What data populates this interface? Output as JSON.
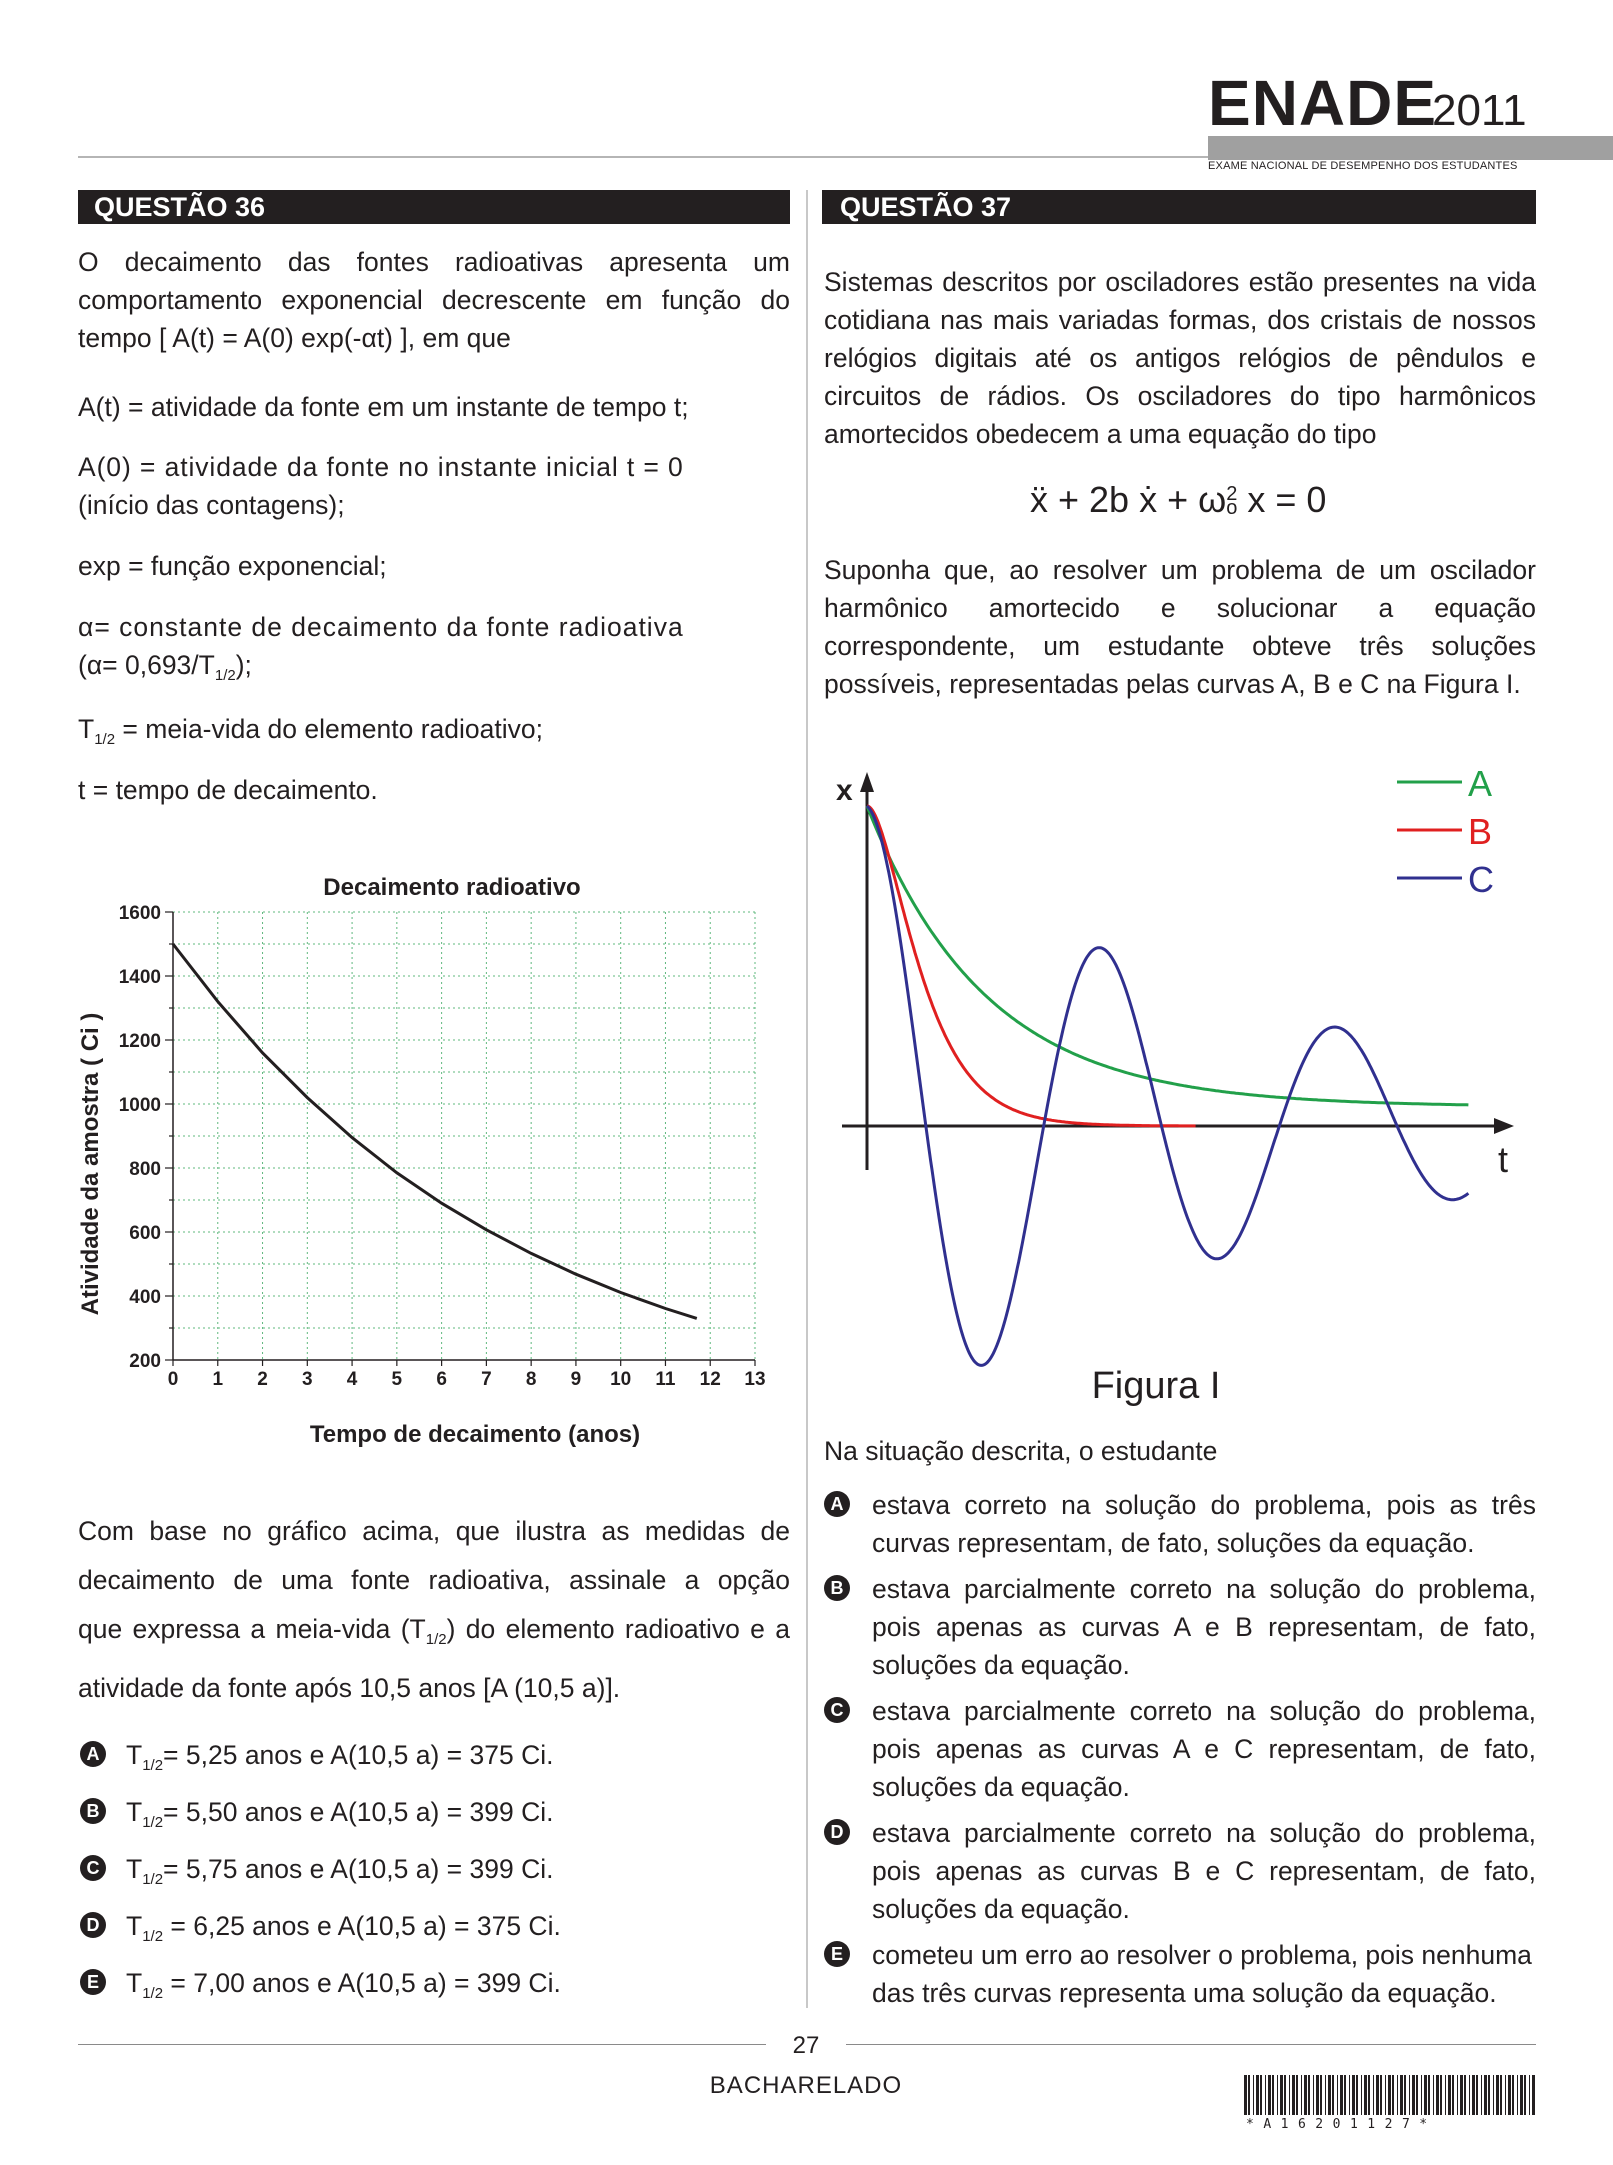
{
  "header": {
    "logo_title": "ENADE",
    "logo_year": "2011",
    "logo_subtitle": "EXAME NACIONAL DE DESEMPENHO DOS ESTUDANTES"
  },
  "q36": {
    "title": "QUESTÃO 36",
    "intro": "O decaimento das fontes radioativas apresenta um comportamento exponencial decrescente em função do tempo [ A(t) = A(0) exp(-αt) ], em que",
    "def_at": "A(t) = atividade da fonte em um instante de tempo t;",
    "def_a0_line1": "A(0) = atividade da fonte no instante inicial t = 0",
    "def_a0_line2": "(início das contagens);",
    "def_exp": "exp = função exponencial;",
    "def_alpha_line1": "α= constante de decaimento da fonte radioativa",
    "def_alpha_line2_pre": "(α= 0,693/T",
    "def_alpha_line2_sub": "1/2",
    "def_alpha_line2_post": ");",
    "def_t12_pre": "T",
    "def_t12_sub": "1/2",
    "def_t12_post": " = meia-vida do elemento radioativo;",
    "def_t": "t = tempo de decaimento.",
    "question_line1": "Com base no gráfico acima, que ilustra as medidas de",
    "question_line2": "decaimento de uma fonte radioativa, assinale a opção",
    "question_line3_pre": "que expressa a meia-vida (T",
    "question_line3_sub": "1/2",
    "question_line3_post": ") do elemento radioativo e a",
    "question_line4": "atividade da fonte após 10,5 anos [A (10,5 a)].",
    "options": [
      {
        "letter": "A",
        "pre": "T",
        "sub": "1/2",
        "post": "= 5,25 anos e A(10,5 a) = 375 Ci."
      },
      {
        "letter": "B",
        "pre": "T",
        "sub": "1/2",
        "post": "= 5,50 anos e A(10,5 a) = 399 Ci."
      },
      {
        "letter": "C",
        "pre": "T",
        "sub": "1/2",
        "post": "= 5,75 anos e A(10,5 a) = 399 Ci."
      },
      {
        "letter": "D",
        "pre": "T",
        "sub": "1/2",
        "post": " = 6,25 anos e A(10,5 a) = 375 Ci."
      },
      {
        "letter": "E",
        "pre": "T",
        "sub": "1/2",
        "post": " = 7,00 anos e A(10,5 a) = 399 Ci."
      }
    ]
  },
  "q37": {
    "title": "QUESTÃO 37",
    "intro": "Sistemas descritos por osciladores estão presentes na vida cotidiana nas mais variadas formas, dos cristais de nossos relógios digitais até os antigos relógios de pêndulos e circuitos de rádios. Os osciladores do tipo harmônicos amortecidos obedecem a uma equação do tipo",
    "eq_a": "ẍ + 2b ẋ + ω",
    "eq_sup": "2",
    "eq_sub": "o",
    "eq_b": " x = 0",
    "para2": "Suponha que, ao resolver um problema de um oscilador harmônico amortecido e solucionar a equação correspondente, um estudante obteve três soluções possíveis, representadas pelas curvas A, B e C na Figura I.",
    "stem": "Na situação descrita, o estudante",
    "options": [
      {
        "letter": "A",
        "text": "estava correto na solução do problema, pois as três curvas representam, de fato, soluções da equação."
      },
      {
        "letter": "B",
        "text": "estava parcialmente correto na solução do problema, pois apenas as curvas A e B representam, de fato, soluções da equação."
      },
      {
        "letter": "C",
        "text": "estava parcialmente correto na solução do problema, pois apenas as curvas A e C representam, de fato, soluções da equação."
      },
      {
        "letter": "D",
        "text": "estava parcialmente correto na solução do problema, pois apenas as curvas B e C representam, de fato, soluções da equação."
      },
      {
        "letter": "E",
        "text": "cometeu um erro ao resolver o problema, pois nenhuma das três curvas representa uma solução da equação."
      }
    ]
  },
  "chart_data": [
    {
      "type": "line",
      "title": "Decaimento radioativo",
      "xlabel": "Tempo de decaimento (anos)",
      "ylabel": "Atividade da amostra ( Ci )",
      "xlim": [
        0,
        13
      ],
      "ylim": [
        200,
        1600
      ],
      "xticks": [
        0,
        1,
        2,
        3,
        4,
        5,
        6,
        7,
        8,
        9,
        10,
        11,
        12,
        13
      ],
      "yticks": [
        200,
        400,
        600,
        800,
        1000,
        1200,
        1400,
        1600
      ],
      "grid": true,
      "series": [
        {
          "color": "#231f20",
          "x": [
            0,
            1,
            2,
            3,
            4,
            5,
            6,
            7,
            8,
            9,
            10,
            11,
            11.7
          ],
          "y": [
            1500,
            1320,
            1160,
            1020,
            895,
            785,
            690,
            607,
            533,
            468,
            411,
            361,
            330
          ]
        }
      ]
    },
    {
      "type": "line",
      "title": "Figura I",
      "xlabel": "t",
      "ylabel": "x",
      "legend_position": "top-right",
      "grid": false,
      "series": [
        {
          "name": "A",
          "color": "#22a04a"
        },
        {
          "name": "B",
          "color": "#e02020"
        },
        {
          "name": "C",
          "color": "#30308f"
        }
      ]
    }
  ],
  "footer": {
    "page_number": "27",
    "title": "BACHARELADO",
    "barcode_text": "*A16201127*"
  }
}
